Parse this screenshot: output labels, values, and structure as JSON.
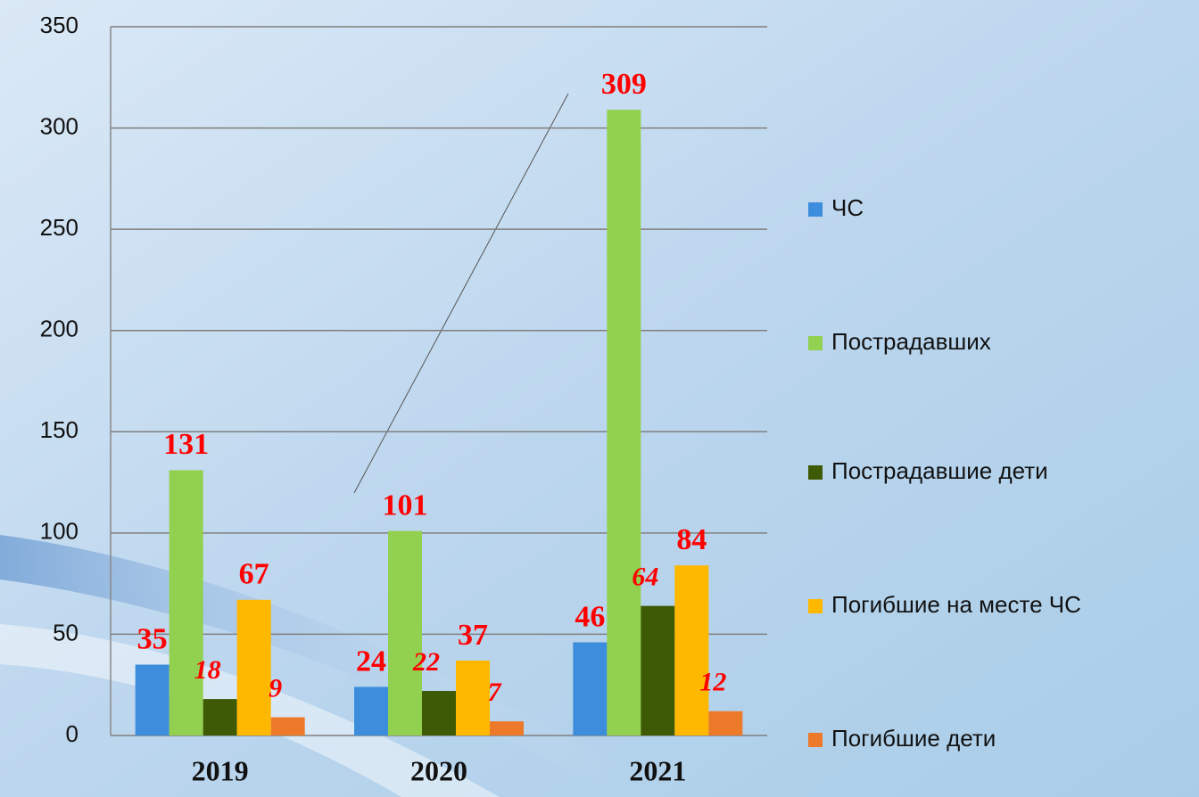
{
  "chart_data": {
    "type": "bar",
    "categories": [
      "2019",
      "2020",
      "2021"
    ],
    "series": [
      {
        "name": "ЧС",
        "color": "#3c8ddc",
        "values": [
          35,
          24,
          46
        ]
      },
      {
        "name": "Пострадавших",
        "color": "#92d050",
        "values": [
          131,
          101,
          309
        ]
      },
      {
        "name": "Пострадавшие дети",
        "color": "#3f5a05",
        "values": [
          18,
          22,
          64
        ]
      },
      {
        "name": "Погибшие на месте ЧС",
        "color": "#ffb800",
        "values": [
          67,
          37,
          84
        ]
      },
      {
        "name": "Погибшие дети",
        "color": "#ec7a2a",
        "values": [
          9,
          7,
          12
        ]
      }
    ],
    "ylim": [
      0,
      350
    ],
    "yticks": [
      0,
      50,
      100,
      150,
      200,
      250,
      300,
      350
    ],
    "grid": true,
    "legend": "right"
  }
}
